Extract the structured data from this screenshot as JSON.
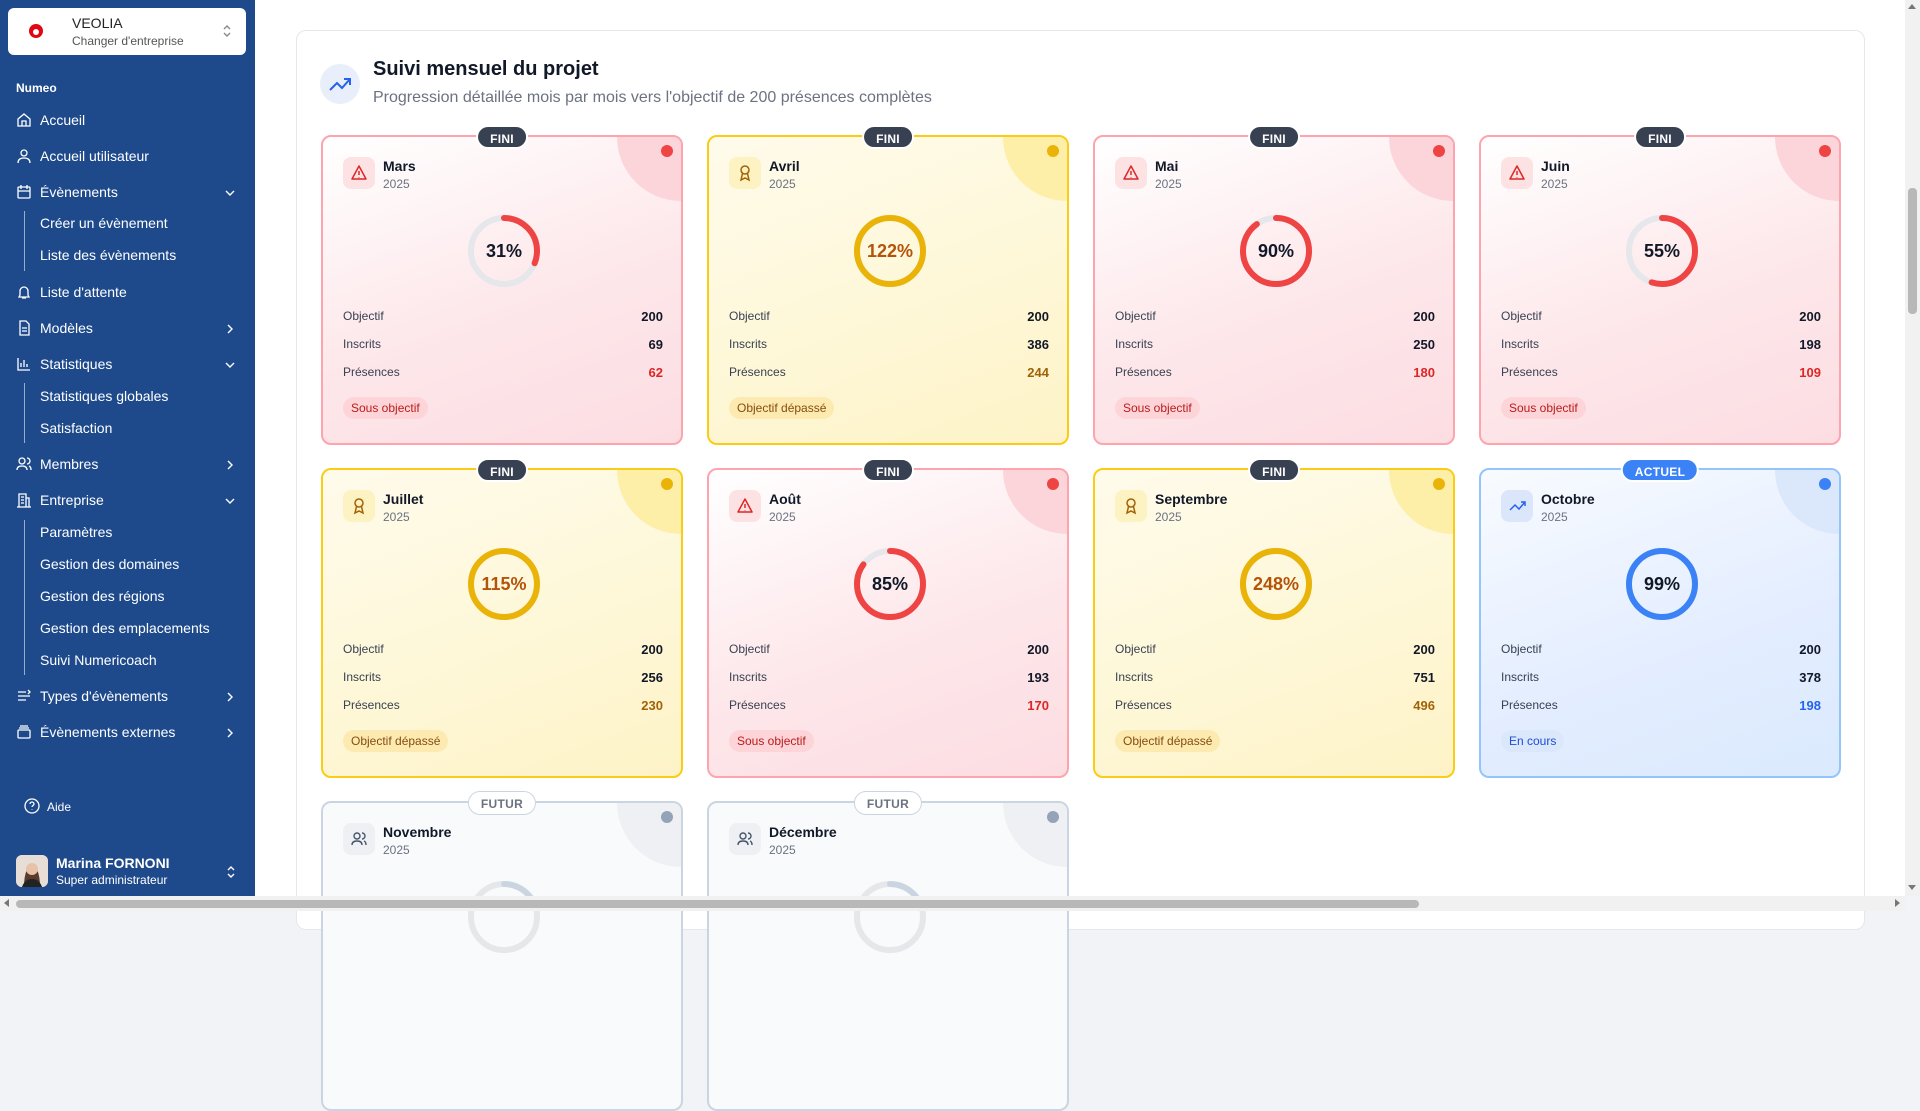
{
  "company": {
    "name": "VEOLIA",
    "subtitle": "Changer d'entreprise"
  },
  "sidebar": {
    "group_label": "Numeo",
    "items": [
      {
        "label": "Accueil",
        "icon": "home-icon"
      },
      {
        "label": "Accueil utilisateur",
        "icon": "user-icon"
      },
      {
        "label": "Évènements",
        "icon": "calendar-icon",
        "expanded": true,
        "children": [
          "Créer un évènement",
          "Liste des évènements"
        ]
      },
      {
        "label": "Liste d'attente",
        "icon": "bell-icon"
      },
      {
        "label": "Modèles",
        "icon": "file-icon",
        "expanded": false
      },
      {
        "label": "Statistiques",
        "icon": "bar-chart-icon",
        "expanded": true,
        "children": [
          "Statistiques globales",
          "Satisfaction"
        ]
      },
      {
        "label": "Membres",
        "icon": "users-icon",
        "expanded": false
      },
      {
        "label": "Entreprise",
        "icon": "building-icon",
        "expanded": true,
        "children": [
          "Paramètres",
          "Gestion des domaines",
          "Gestion des régions",
          "Gestion des emplacements",
          "Suivi Numericoach"
        ]
      },
      {
        "label": "Types d'évènements",
        "icon": "list-icon",
        "expanded": false
      },
      {
        "label": "Évènements externes",
        "icon": "stack-icon",
        "expanded": false
      }
    ],
    "help": "Aide",
    "user": {
      "name": "Marina FORNONI",
      "role": "Super administrateur"
    }
  },
  "header": {
    "title": "Suivi mensuel du projet",
    "subtitle": "Progression détaillée mois par mois vers l'objectif de 200 présences complètes"
  },
  "labels": {
    "objectif": "Objectif",
    "inscrits": "Inscrits",
    "presences": "Présences"
  },
  "months": [
    {
      "name": "Mars",
      "year": "2025",
      "badge": "FINI",
      "tone": "red",
      "percent": "31%",
      "progress": 0.31,
      "objectif": "200",
      "inscrits": "69",
      "presences": "62",
      "status": "Sous objectif"
    },
    {
      "name": "Avril",
      "year": "2025",
      "badge": "FINI",
      "tone": "yellow",
      "percent": "122%",
      "progress": 1.0,
      "objectif": "200",
      "inscrits": "386",
      "presences": "244",
      "status": "Objectif dépassé"
    },
    {
      "name": "Mai",
      "year": "2025",
      "badge": "FINI",
      "tone": "red",
      "percent": "90%",
      "progress": 0.9,
      "objectif": "200",
      "inscrits": "250",
      "presences": "180",
      "status": "Sous objectif"
    },
    {
      "name": "Juin",
      "year": "2025",
      "badge": "FINI",
      "tone": "red",
      "percent": "55%",
      "progress": 0.55,
      "objectif": "200",
      "inscrits": "198",
      "presences": "109",
      "status": "Sous objectif"
    },
    {
      "name": "Juillet",
      "year": "2025",
      "badge": "FINI",
      "tone": "yellow",
      "percent": "115%",
      "progress": 1.0,
      "objectif": "200",
      "inscrits": "256",
      "presences": "230",
      "status": "Objectif dépassé"
    },
    {
      "name": "Août",
      "year": "2025",
      "badge": "FINI",
      "tone": "red",
      "percent": "85%",
      "progress": 0.85,
      "objectif": "200",
      "inscrits": "193",
      "presences": "170",
      "status": "Sous objectif"
    },
    {
      "name": "Septembre",
      "year": "2025",
      "badge": "FINI",
      "tone": "yellow",
      "percent": "248%",
      "progress": 1.0,
      "objectif": "200",
      "inscrits": "751",
      "presences": "496",
      "status": "Objectif dépassé"
    },
    {
      "name": "Octobre",
      "year": "2025",
      "badge": "ACTUEL",
      "tone": "blue",
      "percent": "99%",
      "progress": 0.99,
      "objectif": "200",
      "inscrits": "378",
      "presences": "198",
      "status": "En cours"
    },
    {
      "name": "Novembre",
      "year": "2025",
      "badge": "FUTUR",
      "tone": "grey"
    },
    {
      "name": "Décembre",
      "year": "2025",
      "badge": "FUTUR",
      "tone": "grey"
    }
  ],
  "colors": {
    "red": "#ef4444",
    "yellow": "#eab308",
    "blue": "#3b82f6",
    "grey": "#94a3b8",
    "sidebar": "#1e4a8c"
  }
}
